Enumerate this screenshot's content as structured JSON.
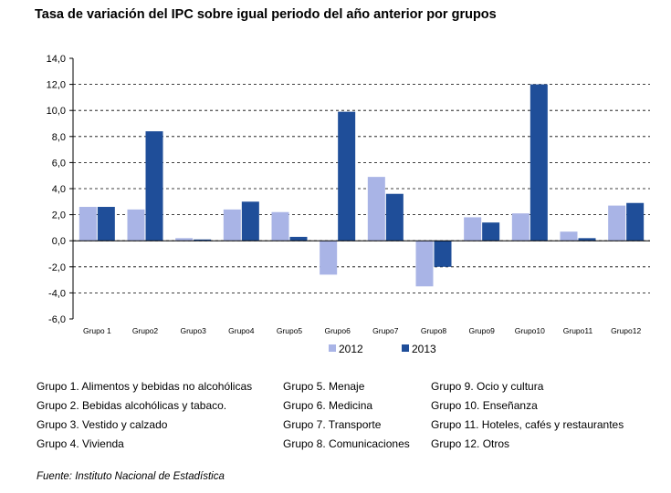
{
  "chart_data": {
    "type": "bar",
    "title": "Tasa de variación del IPC sobre igual periodo del año anterior por grupos",
    "categories": [
      "Grupo 1",
      "Grupo2",
      "Grupo3",
      "Grupo4",
      "Grupo5",
      "Grupo6",
      "Grupo7",
      "Grupo8",
      "Grupo9",
      "Grupo10",
      "Grupo11",
      "Grupo12"
    ],
    "series": [
      {
        "name": "2012",
        "color": "#a9b4e6",
        "values": [
          2.6,
          2.4,
          0.2,
          2.4,
          2.2,
          -2.6,
          4.9,
          -3.5,
          1.8,
          2.1,
          0.7,
          2.7
        ]
      },
      {
        "name": "2013",
        "color": "#1f4e99",
        "values": [
          2.6,
          8.4,
          0.1,
          3.0,
          0.3,
          9.9,
          3.6,
          -2.0,
          1.4,
          12.0,
          0.2,
          2.9
        ]
      }
    ],
    "y_ticks": [
      "14,0",
      "12,0",
      "10,0",
      "8,0",
      "6,0",
      "4,0",
      "2,0",
      "0,0",
      "-2,0",
      "-4,0",
      "-6,0"
    ],
    "ylim": [
      -6,
      14
    ],
    "y_step": 2,
    "grid": "horizontal dashed",
    "legend": "bottom"
  },
  "notes": {
    "col1": [
      "Grupo 1. Alimentos y bebidas no alcohólicas",
      "Grupo 2. Bebidas alcohólicas y  tabaco.",
      "Grupo 3. Vestido y calzado",
      "Grupo 4. Vivienda"
    ],
    "col2": [
      "Grupo 5. Menaje",
      "Grupo 6. Medicina",
      "Grupo 7. Transporte",
      "Grupo 8. Comunicaciones"
    ],
    "col3": [
      "Grupo 9. Ocio y cultura",
      "Grupo 10. Enseñanza",
      "Grupo 11. Hoteles, cafés y restaurantes",
      "Grupo 12. Otros"
    ]
  },
  "source": "Fuente: Instituto Nacional de Estadística"
}
